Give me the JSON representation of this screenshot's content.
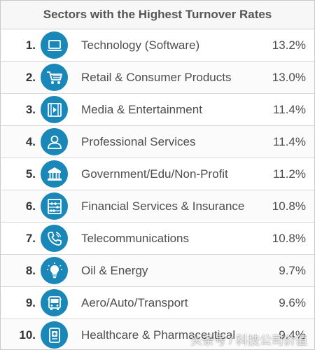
{
  "chart_data": {
    "type": "table",
    "title": "Sectors with the Highest Turnover Rates",
    "rows": [
      {
        "rank": "1.",
        "sector": "Technology (Software)",
        "rate": "13.2%",
        "value": 13.2,
        "icon": "laptop-icon"
      },
      {
        "rank": "2.",
        "sector": "Retail & Consumer Products",
        "rate": "13.0%",
        "value": 13.0,
        "icon": "shopping-cart-icon"
      },
      {
        "rank": "3.",
        "sector": "Media & Entertainment",
        "rate": "11.4%",
        "value": 11.4,
        "icon": "film-icon"
      },
      {
        "rank": "4.",
        "sector": "Professional Services",
        "rate": "11.4%",
        "value": 11.4,
        "icon": "person-icon"
      },
      {
        "rank": "5.",
        "sector": "Government/Edu/Non-Profit",
        "rate": "11.2%",
        "value": 11.2,
        "icon": "government-building-icon"
      },
      {
        "rank": "6.",
        "sector": "Financial Services & Insurance",
        "rate": "10.8%",
        "value": 10.8,
        "icon": "abacus-icon"
      },
      {
        "rank": "7.",
        "sector": "Telecommunications",
        "rate": "10.8%",
        "value": 10.8,
        "icon": "phone-icon"
      },
      {
        "rank": "8.",
        "sector": "Oil & Energy",
        "rate": "9.7%",
        "value": 9.7,
        "icon": "lightbulb-icon"
      },
      {
        "rank": "9.",
        "sector": "Aero/Auto/Transport",
        "rate": "9.6%",
        "value": 9.6,
        "icon": "bus-icon"
      },
      {
        "rank": "10.",
        "sector": "Healthcare & Pharmaceutical",
        "rate": "9.4%",
        "value": 9.4,
        "icon": "medicine-icon"
      }
    ],
    "colors": {
      "icon_bg": "#1a87b9",
      "icon_fg": "#ffffff"
    }
  },
  "watermark": "头条号 / 科技公司价值"
}
